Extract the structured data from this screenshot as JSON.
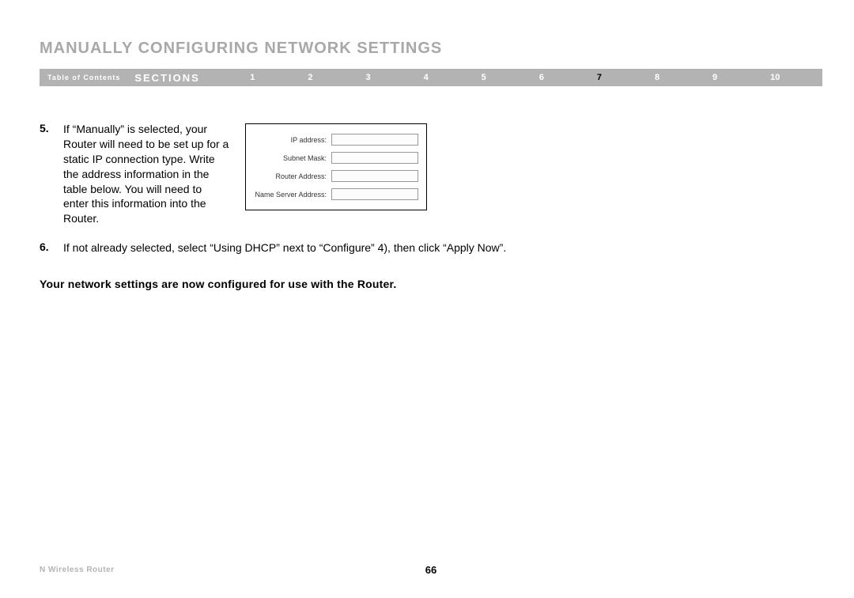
{
  "header": {
    "title": "MANUALLY CONFIGURING NETWORK SETTINGS"
  },
  "nav": {
    "toc": "Table of Contents",
    "sections_label": "SECTIONS",
    "items": [
      {
        "label": "1",
        "active": false
      },
      {
        "label": "2",
        "active": false
      },
      {
        "label": "3",
        "active": false
      },
      {
        "label": "4",
        "active": false
      },
      {
        "label": "5",
        "active": false
      },
      {
        "label": "6",
        "active": false
      },
      {
        "label": "7",
        "active": true
      },
      {
        "label": "8",
        "active": false
      },
      {
        "label": "9",
        "active": false
      },
      {
        "label": "10",
        "active": false
      }
    ],
    "bg_color": "#b3b3b3",
    "text_color": "#ffffff",
    "active_color": "#000000"
  },
  "steps": {
    "s5": {
      "num": "5.",
      "text": "If “Manually” is selected, your Router will need to be set up for a static IP connection type. Write the address information in the table below. You will need to enter this information into the Router."
    },
    "s6": {
      "num": "6.",
      "text": "If not already selected, select “Using DHCP” next to “Configure” 4), then click “Apply Now”."
    }
  },
  "form": {
    "fields": [
      {
        "label": "IP address:"
      },
      {
        "label": "Subnet Mask:"
      },
      {
        "label": "Router Address:"
      },
      {
        "label": "Name Server Address:"
      }
    ],
    "border_color": "#000000",
    "input_border_color": "#999999"
  },
  "conclusion": "Your network settings are now configured for use with the Router.",
  "footer": {
    "product": "N Wireless Router",
    "page": "66"
  }
}
